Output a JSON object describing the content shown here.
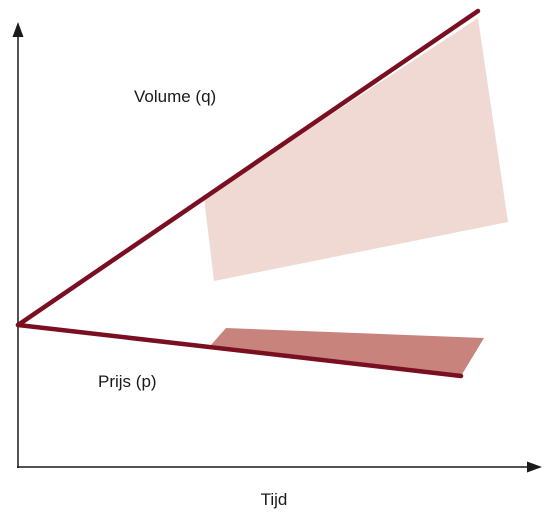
{
  "labels": {
    "volume": "Volume (q)",
    "price": "Prijs (p)",
    "x_axis": "Tijd"
  },
  "colors": {
    "line": "#7b0f22",
    "axis": "#1a1a1a",
    "volume_area": "#f0d9d3",
    "price_area": "#c8847c"
  }
}
